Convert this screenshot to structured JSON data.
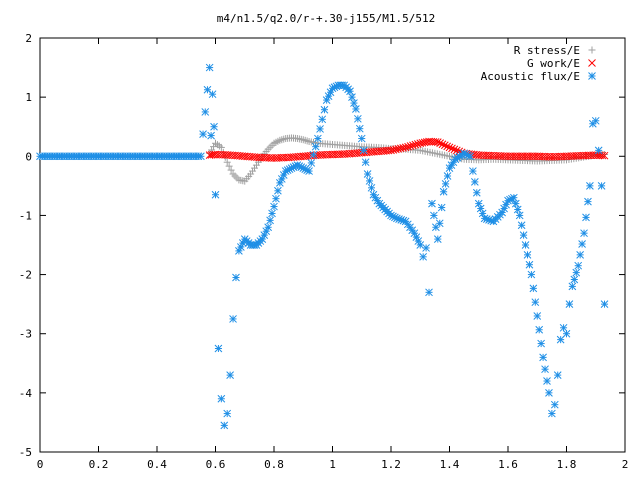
{
  "chart_data": {
    "type": "scatter",
    "title": "m4/n1.5/q2.0/r-+.30-j155/M1.5/512",
    "xlabel": "",
    "ylabel": "",
    "xlim": [
      0,
      2
    ],
    "ylim": [
      -5,
      2
    ],
    "x_ticks": [
      "0",
      "0.2",
      "0.4",
      "0.6",
      "0.8",
      "1",
      "1.2",
      "1.4",
      "1.6",
      "1.8",
      "2"
    ],
    "x_tick_values": [
      0,
      0.2,
      0.4,
      0.6,
      0.8,
      1.0,
      1.2,
      1.4,
      1.6,
      1.8,
      2.0
    ],
    "y_ticks": [
      "2",
      "1",
      "0",
      "-1",
      "-2",
      "-3",
      "-4",
      "-5"
    ],
    "y_tick_values": [
      2,
      1,
      0,
      -1,
      -2,
      -3,
      -4,
      -5
    ],
    "grid": false,
    "legend_position": "top-right",
    "series": [
      {
        "name": "R stress/E",
        "marker": "plus",
        "color": "#a0a0a0",
        "x": [
          0.58,
          0.6,
          0.62,
          0.64,
          0.66,
          0.68,
          0.7,
          0.72,
          0.74,
          0.76,
          0.78,
          0.8,
          0.82,
          0.84,
          0.86,
          0.88,
          0.9,
          0.92,
          0.95,
          1.0,
          1.05,
          1.1,
          1.15,
          1.2,
          1.25,
          1.3,
          1.35,
          1.4,
          1.45,
          1.5,
          1.55,
          1.6,
          1.65,
          1.7,
          1.75,
          1.8,
          1.85,
          1.9,
          1.93
        ],
        "y": [
          0.05,
          0.22,
          0.15,
          -0.1,
          -0.3,
          -0.4,
          -0.42,
          -0.3,
          -0.15,
          0.0,
          0.12,
          0.22,
          0.27,
          0.3,
          0.31,
          0.3,
          0.28,
          0.25,
          0.22,
          0.2,
          0.18,
          0.16,
          0.15,
          0.13,
          0.12,
          0.1,
          0.05,
          0.0,
          -0.05,
          -0.06,
          -0.05,
          -0.06,
          -0.07,
          -0.08,
          -0.07,
          -0.06,
          -0.02,
          0.02,
          0.03
        ]
      },
      {
        "name": "G work/E",
        "marker": "cross",
        "color": "#ff0000",
        "x": [
          0.58,
          0.6,
          0.65,
          0.7,
          0.75,
          0.8,
          0.85,
          0.9,
          0.95,
          1.0,
          1.05,
          1.1,
          1.15,
          1.2,
          1.25,
          1.3,
          1.33,
          1.36,
          1.4,
          1.45,
          1.5,
          1.55,
          1.6,
          1.65,
          1.7,
          1.75,
          1.8,
          1.85,
          1.9,
          1.93
        ],
        "y": [
          0.02,
          0.03,
          0.02,
          0.0,
          -0.02,
          -0.03,
          -0.02,
          0.0,
          0.02,
          0.03,
          0.04,
          0.06,
          0.08,
          0.1,
          0.15,
          0.22,
          0.25,
          0.24,
          0.15,
          0.05,
          0.02,
          0.01,
          0.0,
          0.0,
          0.0,
          -0.01,
          0.0,
          0.01,
          0.02,
          0.01
        ]
      },
      {
        "name": "Acoustic flux/E",
        "marker": "star",
        "color": "#1f8fe6",
        "x": [
          0.0,
          0.05,
          0.1,
          0.15,
          0.2,
          0.25,
          0.3,
          0.35,
          0.4,
          0.45,
          0.5,
          0.55,
          0.58,
          0.585,
          0.59,
          0.595,
          0.6,
          0.61,
          0.62,
          0.63,
          0.64,
          0.65,
          0.66,
          0.67,
          0.68,
          0.7,
          0.72,
          0.74,
          0.76,
          0.78,
          0.8,
          0.82,
          0.84,
          0.86,
          0.88,
          0.9,
          0.92,
          0.95,
          0.98,
          1.0,
          1.02,
          1.04,
          1.06,
          1.08,
          1.1,
          1.12,
          1.14,
          1.16,
          1.18,
          1.2,
          1.22,
          1.25,
          1.28,
          1.3,
          1.31,
          1.32,
          1.33,
          1.34,
          1.36,
          1.38,
          1.4,
          1.42,
          1.45,
          1.47,
          1.48,
          1.5,
          1.52,
          1.55,
          1.58,
          1.6,
          1.62,
          1.64,
          1.66,
          1.68,
          1.7,
          1.72,
          1.74,
          1.75,
          1.76,
          1.77,
          1.78,
          1.79,
          1.8,
          1.81,
          1.82,
          1.84,
          1.86,
          1.88,
          1.89,
          1.9,
          1.91,
          1.92,
          1.93
        ],
        "y": [
          0.0,
          0.0,
          0.0,
          0.0,
          0.0,
          0.0,
          0.0,
          0.0,
          0.0,
          0.0,
          0.0,
          0.0,
          1.5,
          0.35,
          1.05,
          0.5,
          -0.65,
          -3.25,
          -4.1,
          -4.55,
          -4.35,
          -3.7,
          -2.75,
          -2.05,
          -1.6,
          -1.4,
          -1.5,
          -1.5,
          -1.4,
          -1.2,
          -0.85,
          -0.45,
          -0.25,
          -0.2,
          -0.15,
          -0.2,
          -0.25,
          0.3,
          0.95,
          1.15,
          1.2,
          1.2,
          1.1,
          0.8,
          0.3,
          -0.3,
          -0.65,
          -0.8,
          -0.9,
          -1.0,
          -1.05,
          -1.1,
          -1.3,
          -1.5,
          -1.7,
          -1.55,
          -2.3,
          -0.8,
          -1.4,
          -0.6,
          -0.2,
          -0.05,
          0.05,
          0.0,
          -0.25,
          -0.8,
          -1.05,
          -1.1,
          -0.95,
          -0.75,
          -0.7,
          -1.0,
          -1.5,
          -2.0,
          -2.7,
          -3.4,
          -4.0,
          -4.35,
          -4.2,
          -3.7,
          -3.1,
          -2.9,
          -3.0,
          -2.5,
          -2.2,
          -1.85,
          -1.3,
          -0.5,
          0.55,
          0.6,
          0.1,
          -0.5,
          -2.5
        ]
      }
    ]
  }
}
